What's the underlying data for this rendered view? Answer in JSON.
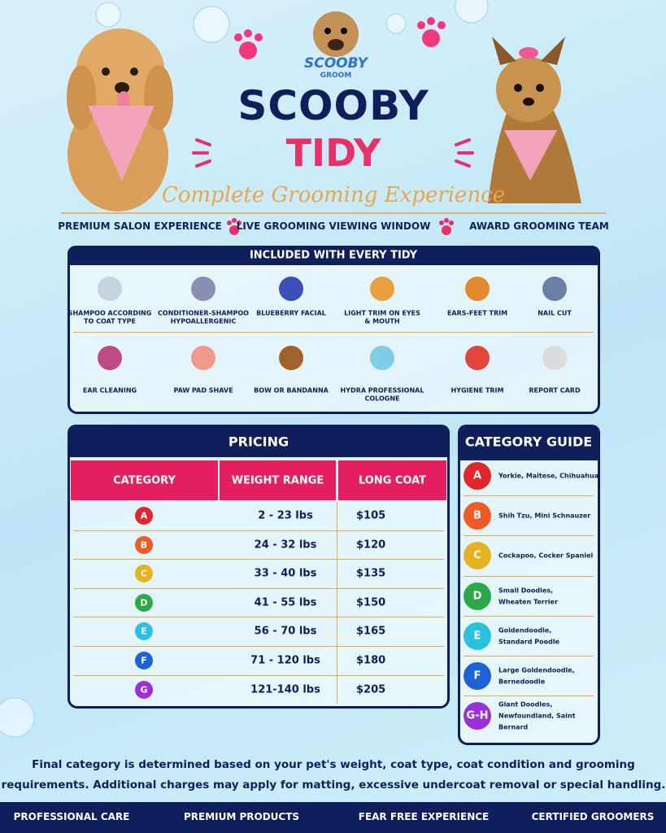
{
  "logo": {
    "line1": "SCOOBY",
    "line2": "GROOM"
  },
  "header": {
    "title": "SCOOBY",
    "subtitle": "TIDY",
    "tagline": "Complete Grooming Experience"
  },
  "features": [
    "PREMIUM SALON EXPERIENCE",
    "LIVE GROOMING VIEWING WINDOW",
    "AWARD GROOMING TEAM"
  ],
  "included": {
    "title": "INCLUDED WITH EVERY TIDY",
    "items": [
      [
        "SHAMPOO ACCORDING",
        "TO COAT TYPE"
      ],
      [
        "CONDITIONER-SHAMPOO",
        "HYPOALLERGENIC"
      ],
      [
        "BLUEBERRY FACIAL"
      ],
      [
        "LIGHT TRIM ON EYES",
        "& MOUTH"
      ],
      [
        "EARS-FEET TRIM"
      ],
      [
        "NAIL CUT"
      ],
      [
        "EAR CLEANING"
      ],
      [
        "PAW PAD SHAVE"
      ],
      [
        "BOW OR BANDANNA"
      ],
      [
        "HYDRA PROFESSIONAL",
        "COLOGNE"
      ],
      [
        "HYGIENE TRIM"
      ],
      [
        "REPORT CARD"
      ]
    ]
  },
  "pricing": {
    "title": "PRICING",
    "headers": [
      "CATEGORY",
      "WEIGHT RANGE",
      "LONG COAT"
    ],
    "rows": [
      [
        "A",
        "2 - 23 lbs",
        "$105"
      ],
      [
        "B",
        "24 - 32 lbs",
        "$120"
      ],
      [
        "C",
        "33 - 40 lbs",
        "$135"
      ],
      [
        "D",
        "41 - 55 lbs",
        "$150"
      ],
      [
        "E",
        "56 - 70 lbs",
        "$165"
      ],
      [
        "F",
        "71 - 120 lbs",
        "$180"
      ],
      [
        "G",
        "121-140 lbs",
        "$205"
      ]
    ]
  },
  "category_guide": {
    "title": "CATEGORY GUIDE",
    "items": [
      {
        "letter": "A",
        "lines": [
          "Yorkie, Maltese, Chihuahua"
        ]
      },
      {
        "letter": "B",
        "lines": [
          "Shih Tzu, Mini Schnauzer"
        ]
      },
      {
        "letter": "C",
        "lines": [
          "Cockapoo, Cocker Spaniel"
        ]
      },
      {
        "letter": "D",
        "lines": [
          "Small Doodles,",
          "Wheaten Terrier"
        ]
      },
      {
        "letter": "E",
        "lines": [
          "Goldendoodle,",
          "Standard Poodle"
        ]
      },
      {
        "letter": "F",
        "lines": [
          "Large Goldendoodle,",
          "Bernedoodle"
        ]
      },
      {
        "letter": "G-H",
        "lines": [
          "Giant Doodles,",
          "Newfoundland, Saint",
          "Bernard"
        ]
      }
    ]
  },
  "note": [
    "Final category is determined based on your pet's weight, coat type, coat condition and grooming",
    "requirements. Additional charges may apply for matting, excessive undercoat removal or special handling."
  ],
  "footer": [
    "PROFESSIONAL CARE",
    "PREMIUM PRODUCTS",
    "FEAR FREE EXPERIENCE",
    "CERTIFIED GROOMERS"
  ]
}
